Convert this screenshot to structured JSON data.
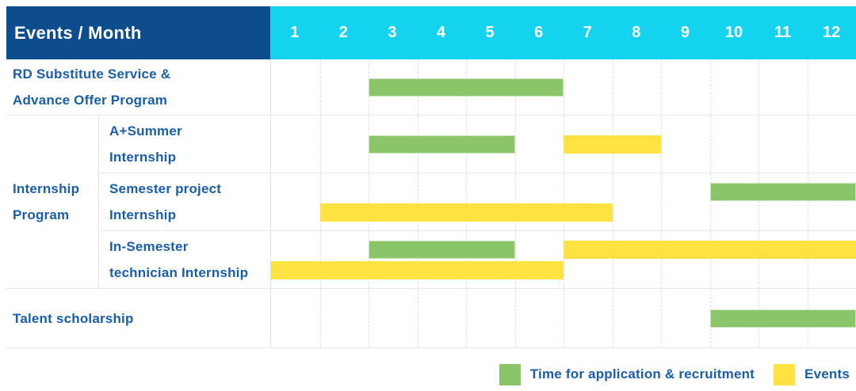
{
  "header": {
    "row_label": "Events / Month"
  },
  "colors": {
    "header_bg": "#0E4D8D",
    "months_bg": "#14D3EF",
    "header_text": "#FFFFFF",
    "label_text": "#1A5EA8",
    "recruitment": "#8BC56A",
    "events": "#FFE342",
    "row_border": "#E9E9E9",
    "column_border": "#E3E3E3",
    "month_gridline": "#E0E0E0"
  },
  "chart_data": {
    "type": "bar",
    "subtype": "gantt-schedule",
    "title": "Events / Month",
    "x_axis": {
      "label": "Month",
      "categories": [
        "1",
        "2",
        "3",
        "4",
        "5",
        "6",
        "7",
        "8",
        "9",
        "10",
        "11",
        "12"
      ],
      "range": [
        1,
        12
      ]
    },
    "series_meaning": {
      "recruitment": "Time for application & recruitment",
      "events": "Events"
    },
    "rows": [
      {
        "group": "",
        "label": "RD Substitute Service & Advance Offer Program",
        "label_lines": [
          "RD Substitute Service &",
          "Advance Offer Program"
        ],
        "lines": [
          [
            {
              "series": "recruitment",
              "start_month": 3,
              "end_month": 6
            }
          ]
        ]
      },
      {
        "group": "Internship Program",
        "label": "A+Summer Internship",
        "label_lines": [
          "A+Summer",
          "Internship"
        ],
        "lines": [
          [
            {
              "series": "recruitment",
              "start_month": 3,
              "end_month": 5
            },
            {
              "series": "events",
              "start_month": 7,
              "end_month": 8
            }
          ]
        ]
      },
      {
        "group": "Internship Program",
        "label": "Semester project Internship",
        "label_lines": [
          "Semester project",
          "Internship"
        ],
        "lines": [
          [
            {
              "series": "recruitment",
              "start_month": 10,
              "end_month": 12
            }
          ],
          [
            {
              "series": "events",
              "start_month": 2,
              "end_month": 7
            }
          ]
        ]
      },
      {
        "group": "Internship Program",
        "label": "In-Semester technician Internship",
        "label_lines": [
          "In-Semester",
          "technician Internship"
        ],
        "lines": [
          [
            {
              "series": "recruitment",
              "start_month": 3,
              "end_month": 5
            },
            {
              "series": "events",
              "start_month": 7,
              "end_month": 12
            }
          ],
          [
            {
              "series": "events",
              "start_month": 1,
              "end_month": 6
            }
          ]
        ]
      },
      {
        "group": "",
        "label": "Talent scholarship",
        "label_lines": [
          "Talent scholarship"
        ],
        "lines": [
          [
            {
              "series": "recruitment",
              "start_month": 10,
              "end_month": 12
            }
          ]
        ]
      }
    ],
    "group_labels": [
      {
        "label": "Internship Program",
        "label_lines": [
          "Internship",
          "Program"
        ],
        "row_span": [
          2,
          4
        ]
      }
    ],
    "legend": {
      "position": "bottom-right",
      "items": [
        {
          "series": "recruitment",
          "label": "Time for application & recruitment",
          "color": "#8BC56A"
        },
        {
          "series": "events",
          "label": "Events",
          "color": "#FFE342"
        }
      ]
    }
  }
}
